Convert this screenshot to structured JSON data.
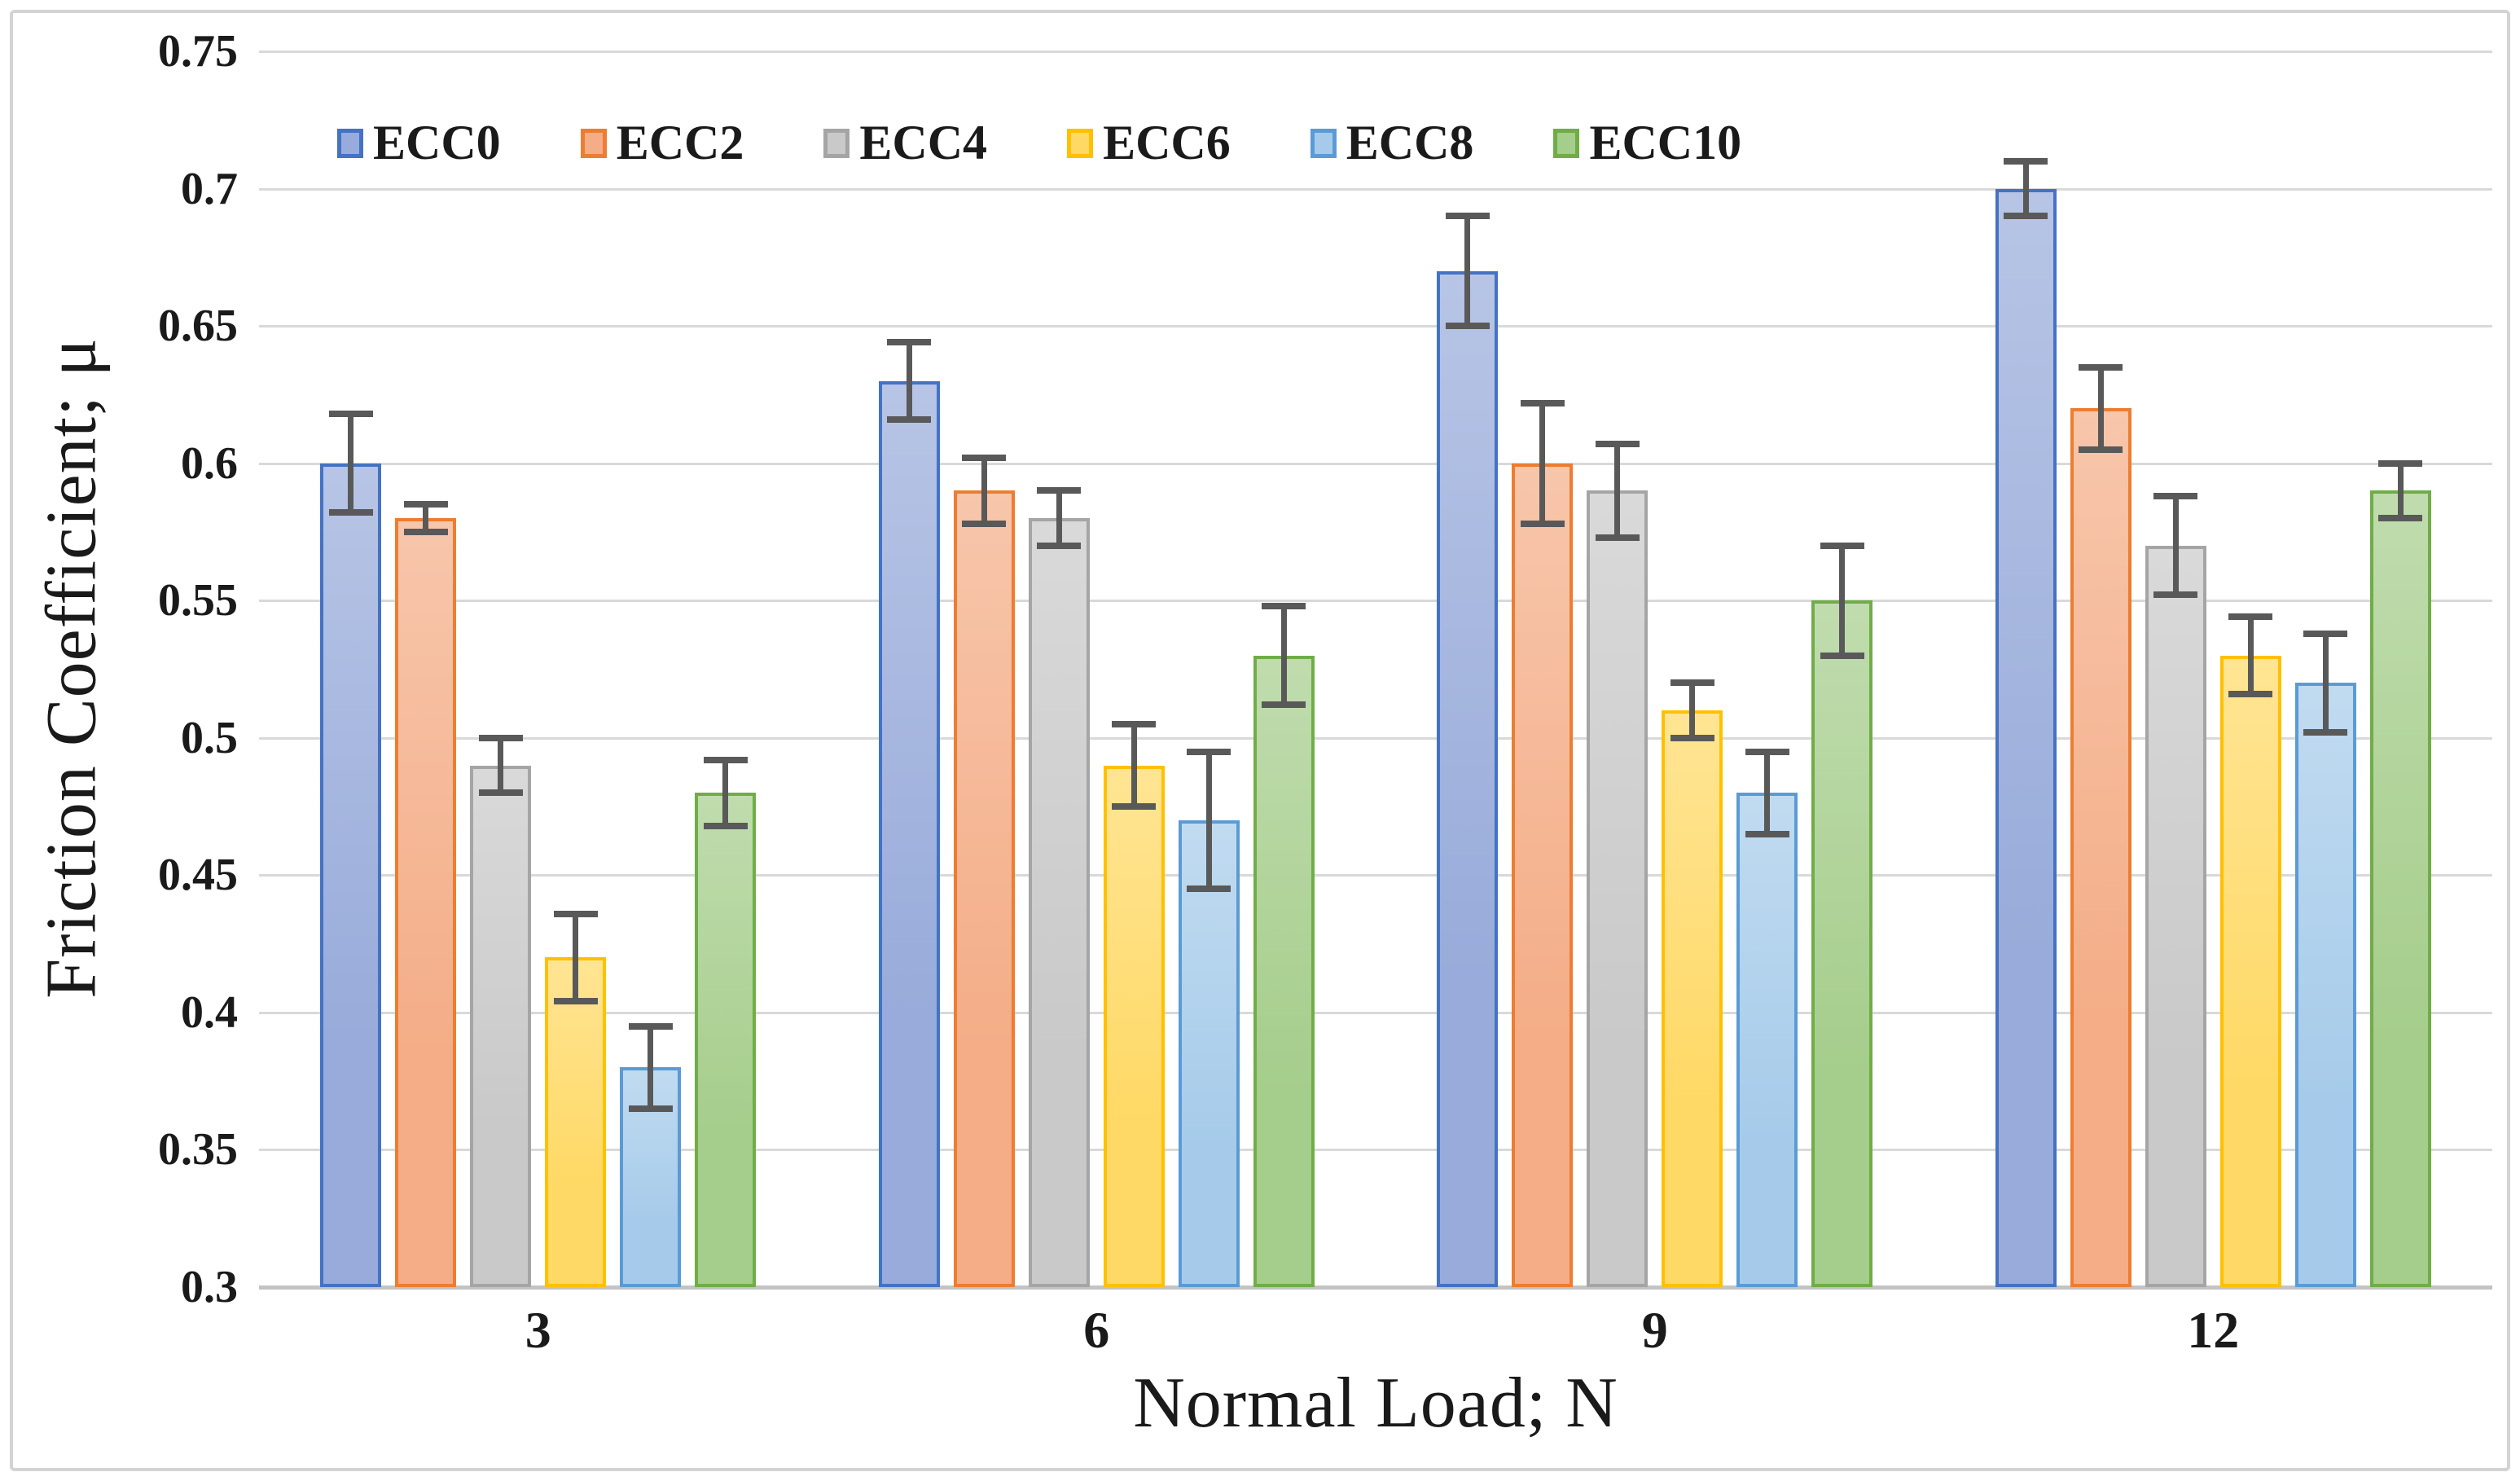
{
  "chart_data": {
    "type": "bar",
    "title": "",
    "xlabel": "Normal Load; N",
    "ylabel": "Friction Coefficient; μ",
    "categories": [
      "3",
      "6",
      "9",
      "12"
    ],
    "ylim": [
      0.3,
      0.75
    ],
    "ytick_step": 0.05,
    "yticks": [
      "0.75",
      "0.7",
      "0.65",
      "0.6",
      "0.55",
      "0.5",
      "0.45",
      "0.4",
      "0.35",
      "0.3"
    ],
    "grid": "horizontal-on",
    "legend_position": "top-inside-left",
    "series": [
      {
        "name": "ECC0",
        "fill": "#98abda",
        "border": "#4472c4",
        "values": [
          0.6,
          0.63,
          0.67,
          0.7
        ],
        "errors": [
          0.018,
          0.014,
          0.02,
          0.01
        ]
      },
      {
        "name": "ECC2",
        "fill": "#f4ad87",
        "border": "#ed7d31",
        "values": [
          0.58,
          0.59,
          0.6,
          0.62
        ],
        "errors": [
          0.005,
          0.012,
          0.022,
          0.015
        ]
      },
      {
        "name": "ECC4",
        "fill": "#c9c9c9",
        "border": "#a5a5a5",
        "values": [
          0.49,
          0.58,
          0.59,
          0.57
        ],
        "errors": [
          0.01,
          0.01,
          0.017,
          0.018
        ]
      },
      {
        "name": "ECC6",
        "fill": "#ffd965",
        "border": "#ffc000",
        "values": [
          0.42,
          0.49,
          0.51,
          0.53
        ],
        "errors": [
          0.016,
          0.015,
          0.01,
          0.014
        ]
      },
      {
        "name": "ECC8",
        "fill": "#a6cbea",
        "border": "#5b9bd5",
        "values": [
          0.38,
          0.47,
          0.48,
          0.52
        ],
        "errors": [
          0.015,
          0.025,
          0.015,
          0.018
        ]
      },
      {
        "name": "ECC10",
        "fill": "#a5cd8b",
        "border": "#70ad47",
        "values": [
          0.48,
          0.53,
          0.55,
          0.59
        ],
        "errors": [
          0.012,
          0.018,
          0.02,
          0.01
        ]
      }
    ],
    "error_bar_color": "#595959",
    "gridline_color": "#d9d9d9",
    "axis_line_color": "#c3c3c3",
    "figure_border_color": "#d3d3d3"
  }
}
